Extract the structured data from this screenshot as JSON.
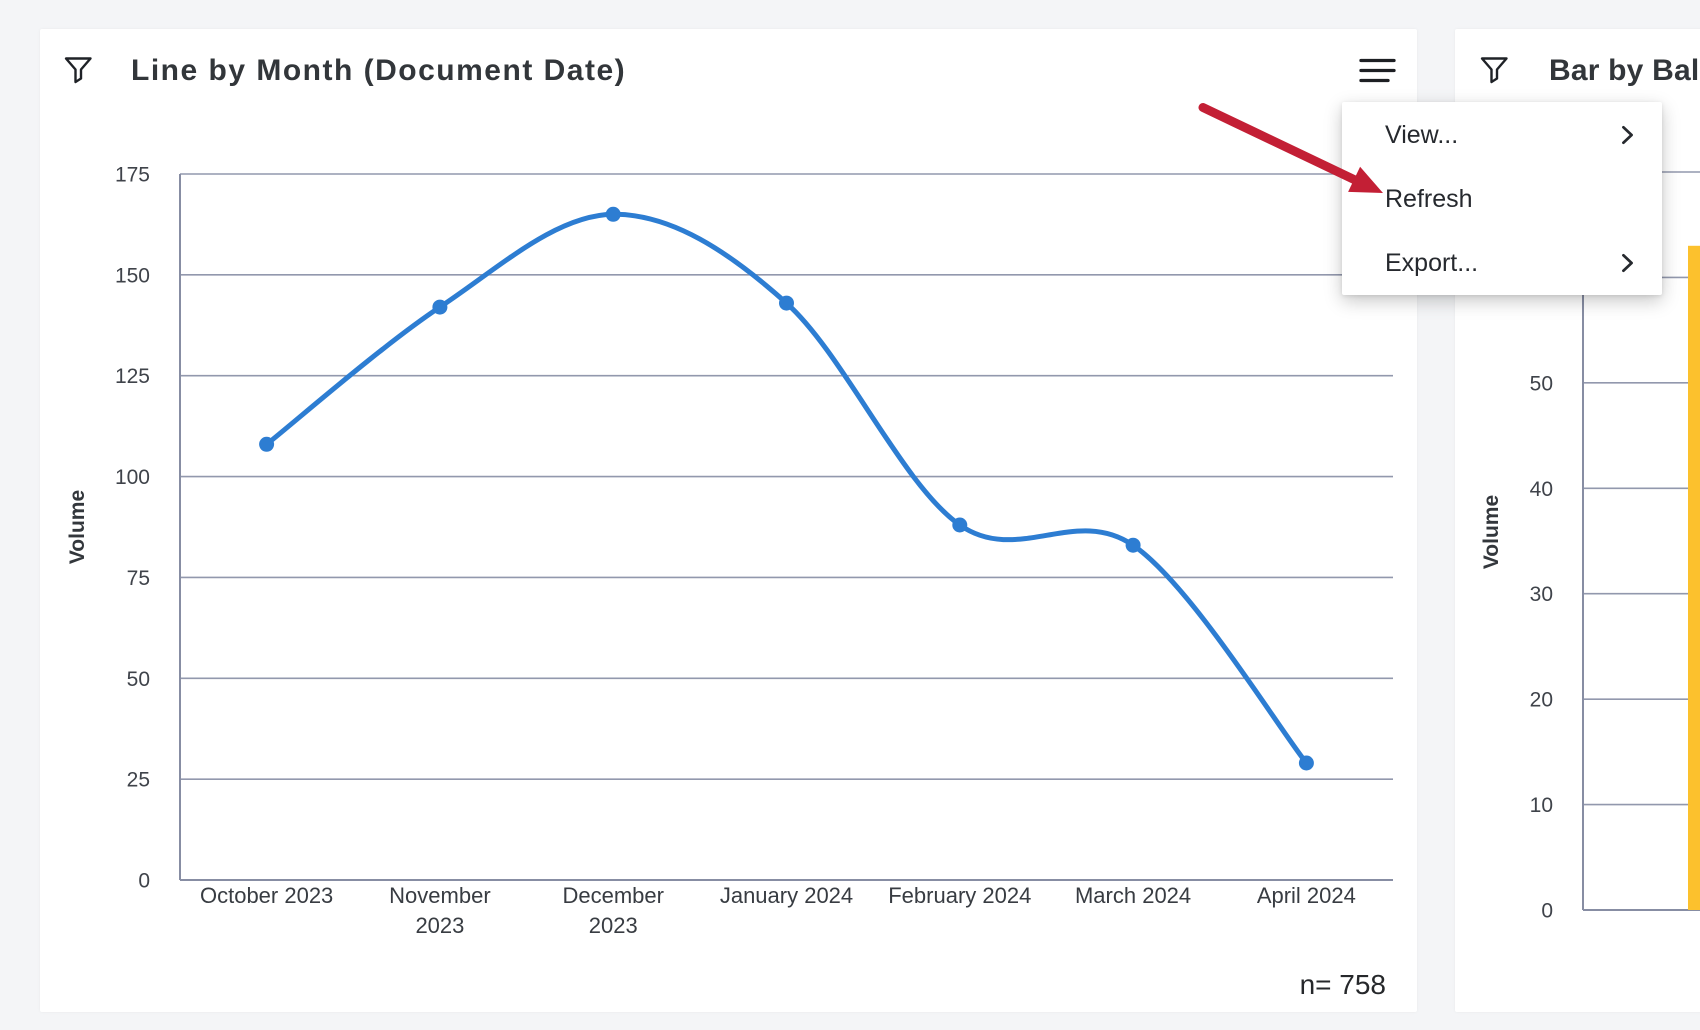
{
  "page": {
    "background": "#f4f5f7",
    "card_background": "#ffffff"
  },
  "colors": {
    "title_text": "#32363a",
    "tick_text": "#3f434a",
    "grid_line": "#9298ad",
    "axis_line": "#878da3",
    "menu_text": "#26292e",
    "icon": "#1f2227",
    "line_series": "#2d7dd2",
    "bar_series": "#fcc12d",
    "annotation_arrow": "#c31f35"
  },
  "line_card": {
    "title": "Line by Month (Document Date)",
    "filter_icon": "filter-funnel-icon",
    "menu_icon": "hamburger-menu-icon",
    "n_label": "n= 758"
  },
  "bar_card": {
    "title": "Bar by Bal",
    "filter_icon": "filter-funnel-icon"
  },
  "context_menu": {
    "items": [
      {
        "label": "View...",
        "submenu": true
      },
      {
        "label": "Refresh",
        "submenu": false
      },
      {
        "label": "Export...",
        "submenu": true
      }
    ],
    "submenu_icon": "chevron-right-icon"
  },
  "annotation": {
    "type": "arrow",
    "color": "#c31f35",
    "points_to": "Refresh"
  },
  "chart_data": [
    {
      "type": "line",
      "title": "Line by Month (Document Date)",
      "categories": [
        "October 2023",
        "November 2023",
        "December 2023",
        "January 2024",
        "February 2024",
        "March 2024",
        "April 2024"
      ],
      "x_tick_lines": [
        [
          "October 2023"
        ],
        [
          "November",
          "2023"
        ],
        [
          "December",
          "2023"
        ],
        [
          "January 2024"
        ],
        [
          "February 2024"
        ],
        [
          "March 2024"
        ],
        [
          "April 2024"
        ]
      ],
      "values": [
        108,
        142,
        165,
        143,
        88,
        83,
        29
      ],
      "xlabel": "",
      "ylabel": "Volume",
      "ylim": [
        0,
        175
      ],
      "ytick_step": 25,
      "grid": true,
      "legend": false,
      "smooth": true,
      "marker": "circle",
      "n": 758
    },
    {
      "type": "bar",
      "title": "Bar by Bal",
      "categories": [
        ""
      ],
      "values": [
        63
      ],
      "xlabel": "",
      "ylabel": "Volume",
      "ylim": [
        0,
        70
      ],
      "ytick_step": 10,
      "grid": true,
      "legend": false
    }
  ]
}
